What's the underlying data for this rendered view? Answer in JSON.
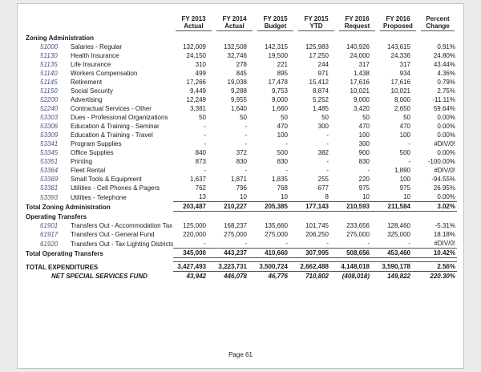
{
  "colors": {
    "account_number": "#4a5480",
    "rule": "#555555",
    "text": "#1a1a1a",
    "page_background": "#ffffff",
    "canvas_background": "#ebebeb"
  },
  "table": {
    "header_columns": [
      {
        "line1": "FY 2013",
        "line2": "Actual"
      },
      {
        "line1": "FY 2014",
        "line2": "Actual"
      },
      {
        "line1": "FY 2015",
        "line2": "Budget"
      },
      {
        "line1": "FY 2015",
        "line2": "YTD"
      },
      {
        "line1": "FY 2016",
        "line2": "Request"
      },
      {
        "line1": "FY 2016",
        "line2": "Proposed"
      },
      {
        "line1": "Percent",
        "line2": "Change"
      }
    ],
    "rows": [
      {
        "type": "section",
        "label": "Zoning Administration"
      },
      {
        "type": "account",
        "account": "51000",
        "name": "Salaries - Regular",
        "values": [
          "132,009",
          "132,508",
          "142,315",
          "125,983",
          "140,926",
          "143,615",
          "0.91%"
        ]
      },
      {
        "type": "account",
        "account": "51130",
        "name": "Health Insurance",
        "values": [
          "24,150",
          "32,746",
          "19,500",
          "17,250",
          "24,000",
          "24,336",
          "24.80%"
        ]
      },
      {
        "type": "account",
        "account": "51135",
        "name": "Life Insurance",
        "values": [
          "310",
          "278",
          "221",
          "244",
          "317",
          "317",
          "43.44%"
        ]
      },
      {
        "type": "account",
        "account": "51140",
        "name": "Workers Compensation",
        "values": [
          "499",
          "845",
          "895",
          "971",
          "1,438",
          "934",
          "4.36%"
        ]
      },
      {
        "type": "account",
        "account": "51145",
        "name": "Retirement",
        "values": [
          "17,266",
          "19,038",
          "17,478",
          "15,412",
          "17,616",
          "17,616",
          "0.79%"
        ]
      },
      {
        "type": "account",
        "account": "51150",
        "name": "Social Security",
        "values": [
          "9,449",
          "9,288",
          "9,753",
          "8,874",
          "10,021",
          "10,021",
          "2.75%"
        ]
      },
      {
        "type": "account",
        "account": "52200",
        "name": "Advertising",
        "values": [
          "12,249",
          "9,955",
          "9,000",
          "5,252",
          "9,000",
          "8,000",
          "-11.11%"
        ]
      },
      {
        "type": "account",
        "account": "52240",
        "name": "Contractual Services - Other",
        "values": [
          "3,381",
          "1,640",
          "1,660",
          "1,485",
          "3,420",
          "2,650",
          "59.64%"
        ]
      },
      {
        "type": "account",
        "account": "53303",
        "name": "Dues - Professional Organizations",
        "values": [
          "50",
          "50",
          "50",
          "50",
          "50",
          "50",
          "0.00%"
        ]
      },
      {
        "type": "account",
        "account": "53306",
        "name": "Education & Training - Seminar",
        "values": [
          "-",
          "-",
          "470",
          "300",
          "470",
          "470",
          "0.00%"
        ]
      },
      {
        "type": "account",
        "account": "53309",
        "name": "Education & Training - Travel",
        "values": [
          "-",
          "-",
          "100",
          "-",
          "100",
          "100",
          "0.00%"
        ]
      },
      {
        "type": "account",
        "account": "53341",
        "name": "Program Supplies",
        "values": [
          "-",
          "-",
          "-",
          "-",
          "300",
          "-",
          "#DIV/0!"
        ]
      },
      {
        "type": "account",
        "account": "53345",
        "name": "Office Supplies",
        "values": [
          "840",
          "372",
          "500",
          "382",
          "900",
          "500",
          "0.00%"
        ]
      },
      {
        "type": "account",
        "account": "53351",
        "name": "Printing",
        "values": [
          "873",
          "830",
          "830",
          "-",
          "830",
          "-",
          "-100.00%"
        ]
      },
      {
        "type": "account",
        "account": "53364",
        "name": "Fleet Rental",
        "values": [
          "-",
          "-",
          "-",
          "-",
          "-",
          "1,890",
          "#DIV/0!"
        ]
      },
      {
        "type": "account",
        "account": "53369",
        "name": "Small Tools & Equipment",
        "values": [
          "1,637",
          "1,871",
          "1,835",
          "255",
          "220",
          "100",
          "-94.55%"
        ]
      },
      {
        "type": "account",
        "account": "53381",
        "name": "Utilities - Cell Phones & Pagers",
        "values": [
          "762",
          "796",
          "768",
          "677",
          "975",
          "975",
          "26.95%"
        ]
      },
      {
        "type": "account",
        "account": "53393",
        "name": "Utilities - Telephone",
        "values": [
          "13",
          "10",
          "10",
          "8",
          "10",
          "10",
          "0.00%"
        ]
      },
      {
        "type": "total",
        "label": "Total Zoning Administration",
        "values": [
          "203,487",
          "210,227",
          "205,385",
          "177,143",
          "210,593",
          "211,584",
          "3.02%"
        ]
      },
      {
        "type": "section",
        "label": "Operating Transfers"
      },
      {
        "type": "account",
        "account": "61901",
        "name": "Transfers Out - Accommodation Tax",
        "values": [
          "125,000",
          "168,237",
          "135,660",
          "101,745",
          "233,656",
          "128,460",
          "-5.31%"
        ]
      },
      {
        "type": "account",
        "account": "61917",
        "name": "Transfers Out - General Fund",
        "values": [
          "220,000",
          "275,000",
          "275,000",
          "206,250",
          "275,000",
          "325,000",
          "18.18%"
        ]
      },
      {
        "type": "account",
        "account": "61920",
        "name": "Transfers Out - Tax Lighting Districts",
        "values": [
          "-",
          "-",
          "-",
          "-",
          "-",
          "-",
          "#DIV/0!"
        ]
      },
      {
        "type": "total",
        "label": "Total Operating Transfers",
        "values": [
          "345,000",
          "443,237",
          "410,660",
          "307,995",
          "508,656",
          "453,460",
          "10.42%"
        ]
      },
      {
        "type": "grand_total",
        "label": "TOTAL EXPENDITURES",
        "values": [
          "3,427,493",
          "3,223,731",
          "3,500,724",
          "2,662,488",
          "4,148,018",
          "3,590,178",
          "2.56%"
        ]
      },
      {
        "type": "net",
        "label": "NET SPECIAL SERVICES FUND",
        "values": [
          "43,942",
          "446,078",
          "46,776",
          "710,802",
          "(408,018)",
          "149,822",
          "220.30%"
        ]
      }
    ]
  },
  "footer": {
    "page_label": "Page 61"
  }
}
